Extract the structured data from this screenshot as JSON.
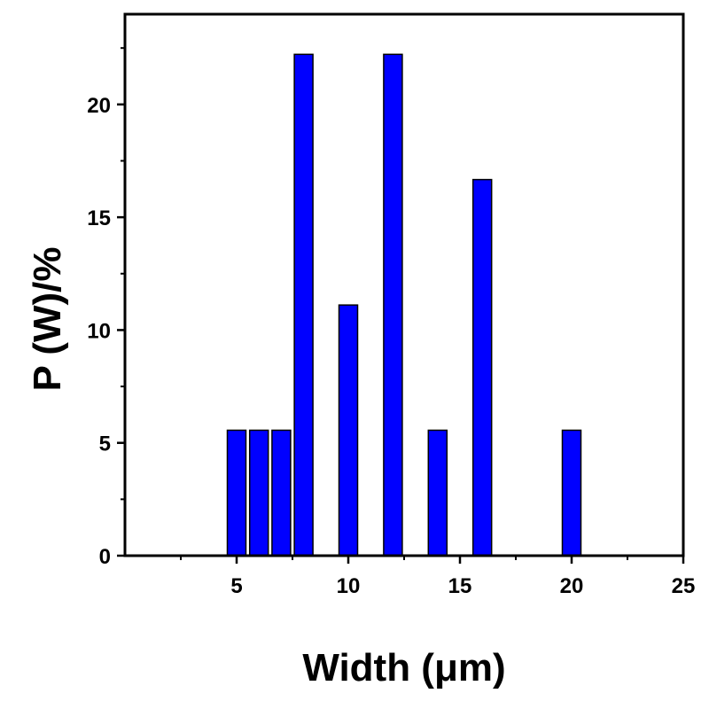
{
  "chart_data": {
    "type": "bar",
    "xlabel": "Width (μm)",
    "ylabel": "P (W)/%",
    "xlim": [
      0,
      25
    ],
    "ylim": [
      0,
      24
    ],
    "xticks": [
      5,
      10,
      15,
      20,
      25
    ],
    "yticks": [
      0,
      5,
      10,
      15,
      20
    ],
    "grid": false,
    "bar_color": "#0000ff",
    "x": [
      5,
      6,
      7,
      8,
      10,
      12,
      14,
      16,
      20
    ],
    "values": [
      5.56,
      5.56,
      5.56,
      22.22,
      11.11,
      22.22,
      5.56,
      16.67,
      5.56
    ]
  }
}
